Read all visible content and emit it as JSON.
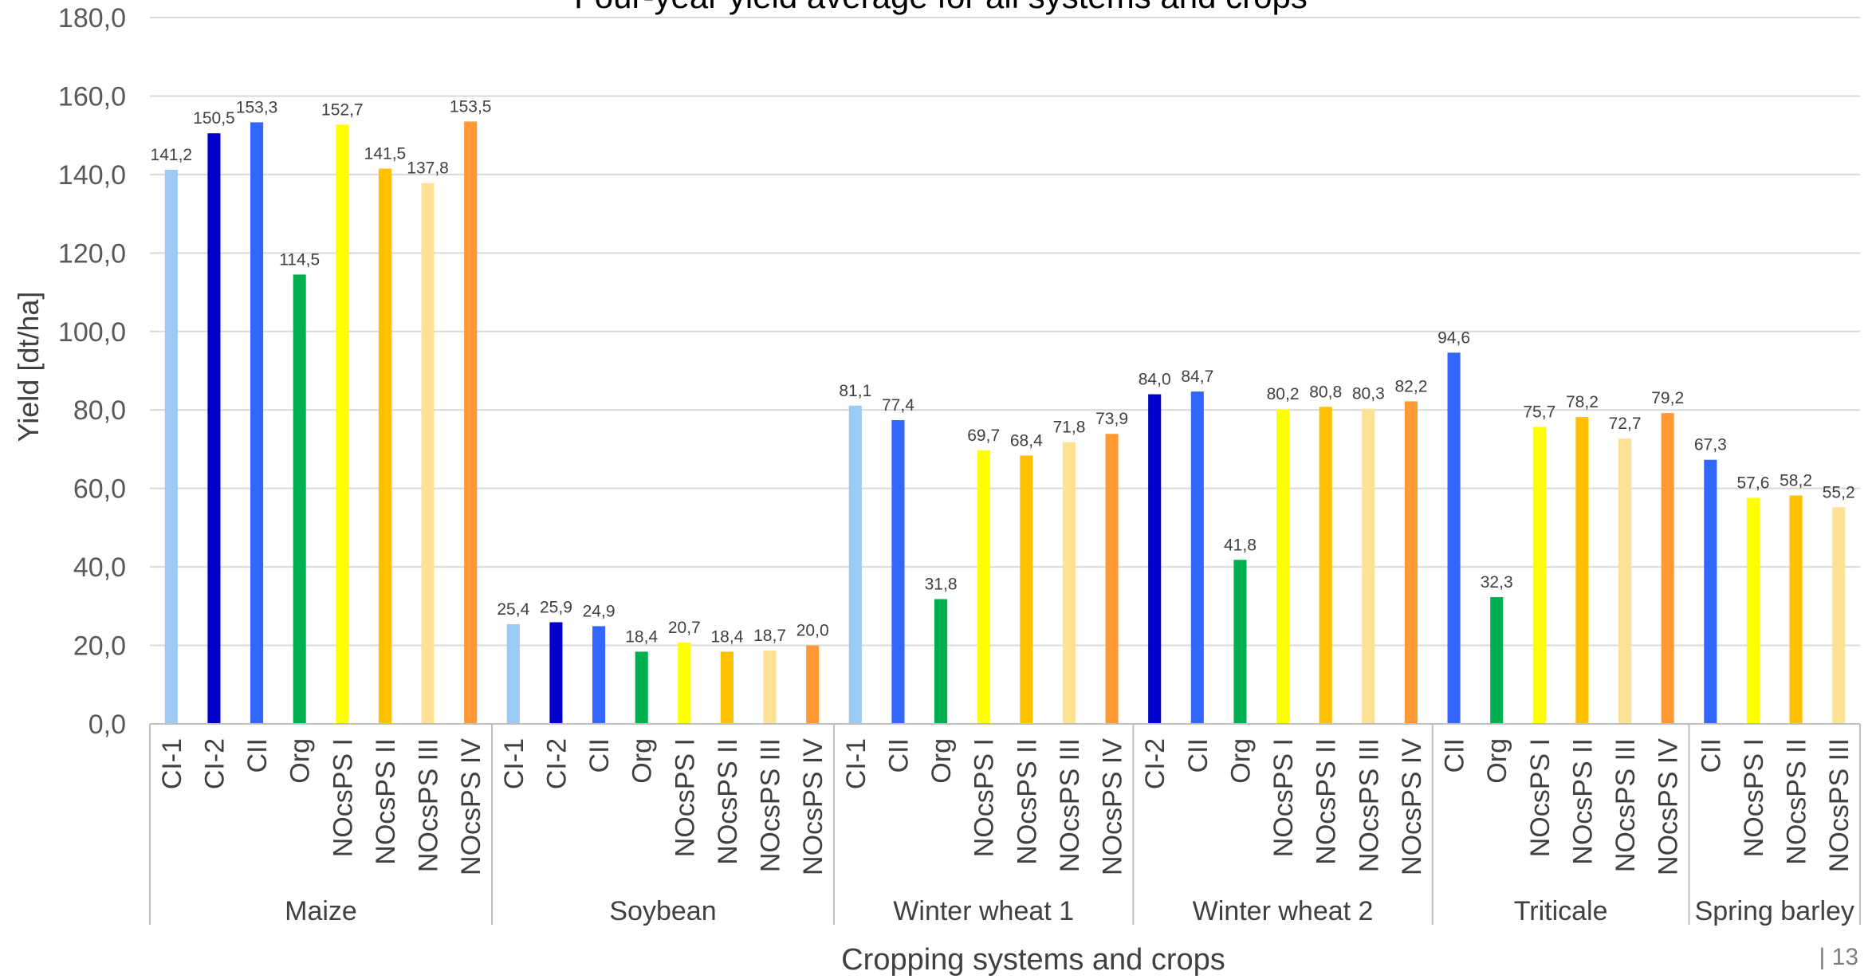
{
  "page_number": "| 13",
  "chart_data": {
    "type": "bar",
    "title": "Four-year yield average for all systems and crops",
    "xlabel": "Cropping systems and crops",
    "ylabel": "Yield [dt/ha]",
    "ylim": [
      0,
      180
    ],
    "yticks": [
      "0,0",
      "20,0",
      "40,0",
      "60,0",
      "80,0",
      "100,0",
      "120,0",
      "140,0",
      "160,0",
      "180,0"
    ],
    "grid": true,
    "legend": "none",
    "colors": {
      "CI-1": "#9dc9f7",
      "CI-2": "#0000c8",
      "CII": "#3366ff",
      "Org": "#00b050",
      "NOcsPS I": "#ffff00",
      "NOcsPS II": "#ffc000",
      "NOcsPS III": "#ffe194",
      "NOcsPS IV": "#ff9933"
    },
    "groups": [
      {
        "name": "Maize",
        "categories": [
          "CI-1",
          "CI-2",
          "CII",
          "Org",
          "NOcsPS I",
          "NOcsPS II",
          "NOcsPS III",
          "NOcsPS IV"
        ],
        "values": [
          141.2,
          150.5,
          153.3,
          114.5,
          152.7,
          141.5,
          137.8,
          153.5
        ],
        "labels": [
          "141,2",
          "150,5",
          "153,3",
          "114,5",
          "152,7",
          "141,5",
          "137,8",
          "153,5"
        ]
      },
      {
        "name": "Soybean",
        "categories": [
          "CI-1",
          "CI-2",
          "CII",
          "Org",
          "NOcsPS I",
          "NOcsPS II",
          "NOcsPS III",
          "NOcsPS IV"
        ],
        "values": [
          25.4,
          25.9,
          24.9,
          18.4,
          20.7,
          18.4,
          18.7,
          20.0
        ],
        "labels": [
          "25,4",
          "25,9",
          "24,9",
          "18,4",
          "20,7",
          "18,4",
          "18,7",
          "20,0"
        ]
      },
      {
        "name": "Winter wheat 1",
        "categories": [
          "CI-1",
          "CII",
          "Org",
          "NOcsPS I",
          "NOcsPS II",
          "NOcsPS III",
          "NOcsPS IV"
        ],
        "values": [
          81.1,
          77.4,
          31.8,
          69.7,
          68.4,
          71.8,
          73.9
        ],
        "labels": [
          "81,1",
          "77,4",
          "31,8",
          "69,7",
          "68,4",
          "71,8",
          "73,9"
        ]
      },
      {
        "name": "Winter wheat 2",
        "categories": [
          "CI-2",
          "CII",
          "Org",
          "NOcsPS I",
          "NOcsPS II",
          "NOcsPS III",
          "NOcsPS IV"
        ],
        "values": [
          84.0,
          84.7,
          41.8,
          80.2,
          80.8,
          80.3,
          82.2
        ],
        "labels": [
          "84,0",
          "84,7",
          "41,8",
          "80,2",
          "80,8",
          "80,3",
          "82,2"
        ]
      },
      {
        "name": "Triticale",
        "categories": [
          "CII",
          "Org",
          "NOcsPS I",
          "NOcsPS II",
          "NOcsPS III",
          "NOcsPS IV"
        ],
        "values": [
          94.6,
          32.3,
          75.7,
          78.2,
          72.7,
          79.2
        ],
        "labels": [
          "94,6",
          "32,3",
          "75,7",
          "78,2",
          "72,7",
          "79,2"
        ]
      },
      {
        "name": "Spring barley",
        "categories": [
          "CII",
          "NOcsPS I",
          "NOcsPS II",
          "NOcsPS III"
        ],
        "values": [
          67.3,
          57.6,
          58.2,
          55.2
        ],
        "labels": [
          "67,3",
          "57,6",
          "58,2",
          "55,2"
        ]
      }
    ]
  }
}
